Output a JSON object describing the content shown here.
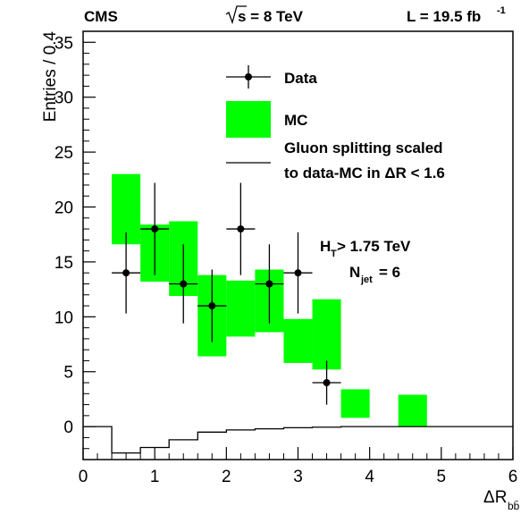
{
  "header": {
    "experiment": "CMS",
    "energy_prefix": "s = 8 TeV",
    "lumi_prefix": "L = 19.5 fb",
    "lumi_sup": "-1"
  },
  "annotations": {
    "ht_main": "H",
    "ht_sub": "T",
    "ht_rest": " > 1.75 TeV",
    "njet_main": "N",
    "njet_sub": "jet",
    "njet_rest": " = 6"
  },
  "legend": {
    "data": "Data",
    "mc": "MC",
    "gluon_line1": "Gluon splitting scaled",
    "gluon_line2": "to data-MC in ΔR < 1.6"
  },
  "chart_data": {
    "type": "histogram",
    "xlabel_main": "ΔR",
    "xlabel_sub": "bb̄",
    "ylabel": "Entries / 0.4",
    "xlim": [
      0,
      6
    ],
    "ylim": [
      -3,
      36
    ],
    "xticks": [
      "0",
      "1",
      "2",
      "3",
      "4",
      "5",
      "6"
    ],
    "yticks": [
      "0",
      "5",
      "10",
      "15",
      "20",
      "25",
      "30",
      "35"
    ],
    "data": {
      "name": "Data",
      "x": [
        0.6,
        1.0,
        1.4,
        1.8,
        2.2,
        2.6,
        3.0,
        3.4
      ],
      "xerr": 0.2,
      "y": [
        14,
        18,
        13,
        11,
        18,
        13,
        14,
        4
      ],
      "yerr_low": [
        3.7,
        4.2,
        3.6,
        3.3,
        4.2,
        3.6,
        3.7,
        2.0
      ],
      "yerr_high": [
        3.7,
        4.2,
        3.6,
        3.3,
        4.2,
        3.6,
        3.7,
        2.0
      ]
    },
    "mc": {
      "name": "MC",
      "color": "#00ff00",
      "bin_edges": [
        [
          0.4,
          0.8
        ],
        [
          0.8,
          1.2
        ],
        [
          1.2,
          1.6
        ],
        [
          1.6,
          2.0
        ],
        [
          2.0,
          2.4
        ],
        [
          2.4,
          2.8
        ],
        [
          2.8,
          3.2
        ],
        [
          3.2,
          3.6
        ],
        [
          3.6,
          4.0
        ],
        [
          4.4,
          4.8
        ]
      ],
      "low": [
        16.6,
        13.2,
        11.9,
        6.4,
        8.2,
        8.6,
        5.8,
        5.2,
        0.8,
        0.0
      ],
      "high": [
        23.0,
        18.4,
        18.7,
        13.8,
        13.3,
        14.3,
        9.8,
        11.6,
        3.4,
        2.9
      ]
    },
    "gluon": {
      "name": "Gluon splitting scaled to data-MC in ΔR < 1.6",
      "bin_edges": [
        0.0,
        0.4,
        0.8,
        1.2,
        1.6,
        2.0,
        2.4,
        2.8,
        3.2,
        3.6,
        6.0
      ],
      "values": [
        0.0,
        -2.4,
        -1.9,
        -1.2,
        -0.5,
        -0.3,
        -0.2,
        -0.1,
        -0.05,
        0.0
      ]
    }
  }
}
